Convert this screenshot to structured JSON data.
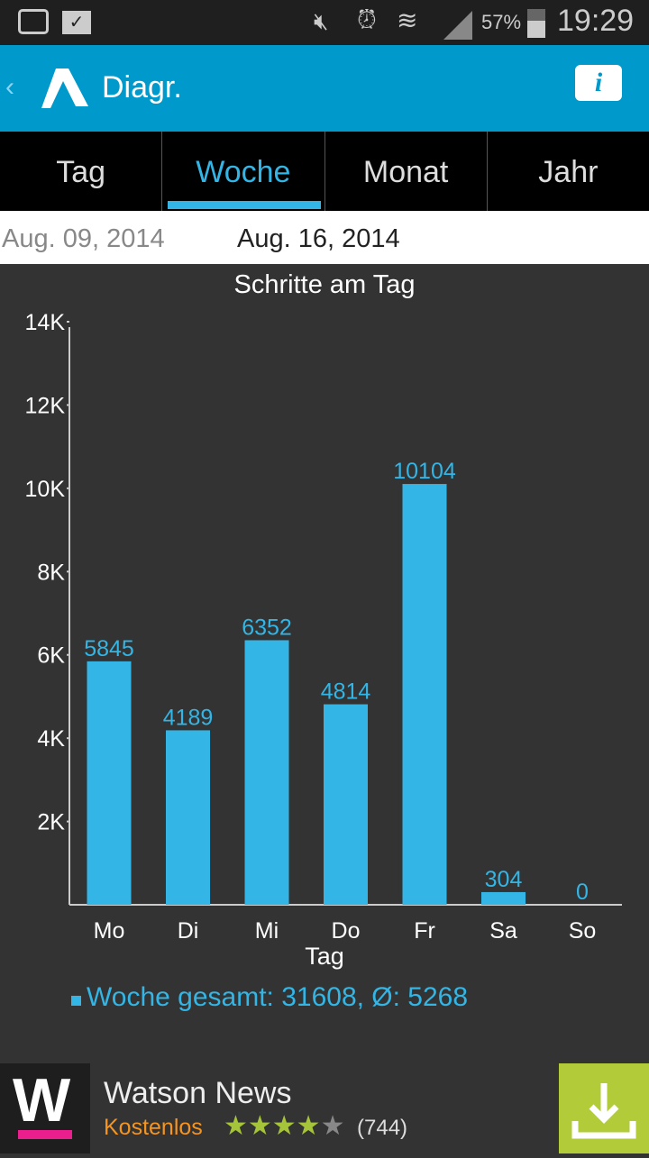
{
  "status": {
    "battery": "57%",
    "time": "19:29",
    "icons": [
      "camera-icon",
      "shopping-bag-check-icon",
      "mute-icon",
      "alarm-icon",
      "wifi-icon",
      "signal-icon",
      "battery-icon"
    ]
  },
  "appbar": {
    "title": "Diagr.",
    "accent": "#0099cc"
  },
  "tabs": [
    {
      "label": "Tag"
    },
    {
      "label": "Woche",
      "active": true
    },
    {
      "label": "Monat"
    },
    {
      "label": "Jahr"
    }
  ],
  "dates": {
    "prev": "Aug. 09, 2014",
    "current": "Aug. 16, 2014"
  },
  "chart_data": {
    "type": "bar",
    "title": "Schritte am Tag",
    "xlabel": "Tag",
    "ylabel": "",
    "categories": [
      "Mo",
      "Di",
      "Mi",
      "Do",
      "Fr",
      "Sa",
      "So"
    ],
    "values": [
      5845,
      4189,
      6352,
      4814,
      10104,
      304,
      0
    ],
    "ylim": [
      0,
      14000
    ],
    "yticks": [
      {
        "v": 2000,
        "label": "2K"
      },
      {
        "v": 4000,
        "label": "4K"
      },
      {
        "v": 6000,
        "label": "6K"
      },
      {
        "v": 8000,
        "label": "8K"
      },
      {
        "v": 10000,
        "label": "10K"
      },
      {
        "v": 12000,
        "label": "12K"
      },
      {
        "v": 14000,
        "label": "14K"
      }
    ],
    "bar_color": "#33b5e5",
    "legend": "Woche gesamt: 31608, Ø: 5268"
  },
  "ad": {
    "name": "Watson News",
    "price": "Kostenlos",
    "rating": 4,
    "reviews": "(744)",
    "button_color": "#b2cb39"
  }
}
